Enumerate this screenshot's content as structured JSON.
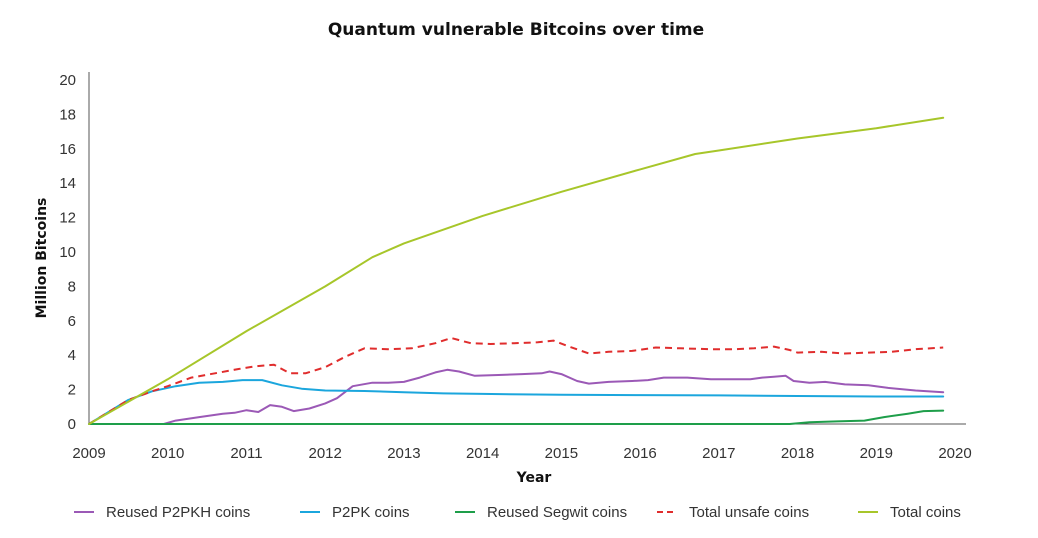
{
  "chart_data": {
    "type": "line",
    "title": "Quantum vulnerable Bitcoins over time",
    "xlabel": "Year",
    "ylabel": "Million Bitcoins",
    "xlim": [
      2009,
      2020
    ],
    "ylim": [
      0,
      20
    ],
    "x_ticks": [
      "2009",
      "2010",
      "2011",
      "2012",
      "2013",
      "2014",
      "2015",
      "2016",
      "2017",
      "2018",
      "2019",
      "2020"
    ],
    "y_ticks": [
      "0",
      "2",
      "4",
      "6",
      "8",
      "10",
      "12",
      "14",
      "16",
      "18",
      "20"
    ],
    "grid": false,
    "legend_position": "bottom",
    "series": [
      {
        "name": "Reused P2PKH coins",
        "color": "#9b59b6",
        "dash": "solid",
        "points": [
          [
            2009,
            0
          ],
          [
            2009.95,
            0
          ],
          [
            2010.1,
            0.2
          ],
          [
            2010.4,
            0.4
          ],
          [
            2010.7,
            0.6
          ],
          [
            2010.85,
            0.65
          ],
          [
            2011.0,
            0.8
          ],
          [
            2011.15,
            0.7
          ],
          [
            2011.3,
            1.1
          ],
          [
            2011.45,
            1.0
          ],
          [
            2011.6,
            0.75
          ],
          [
            2011.8,
            0.9
          ],
          [
            2012.0,
            1.2
          ],
          [
            2012.15,
            1.5
          ],
          [
            2012.35,
            2.2
          ],
          [
            2012.6,
            2.4
          ],
          [
            2012.8,
            2.4
          ],
          [
            2013.0,
            2.45
          ],
          [
            2013.2,
            2.7
          ],
          [
            2013.4,
            3.0
          ],
          [
            2013.55,
            3.15
          ],
          [
            2013.7,
            3.05
          ],
          [
            2013.9,
            2.8
          ],
          [
            2014.2,
            2.85
          ],
          [
            2014.5,
            2.9
          ],
          [
            2014.75,
            2.95
          ],
          [
            2014.85,
            3.05
          ],
          [
            2015.0,
            2.9
          ],
          [
            2015.2,
            2.5
          ],
          [
            2015.35,
            2.35
          ],
          [
            2015.6,
            2.45
          ],
          [
            2015.9,
            2.5
          ],
          [
            2016.1,
            2.55
          ],
          [
            2016.3,
            2.7
          ],
          [
            2016.6,
            2.7
          ],
          [
            2016.9,
            2.6
          ],
          [
            2017.2,
            2.6
          ],
          [
            2017.4,
            2.6
          ],
          [
            2017.55,
            2.7
          ],
          [
            2017.7,
            2.75
          ],
          [
            2017.85,
            2.8
          ],
          [
            2017.95,
            2.5
          ],
          [
            2018.15,
            2.4
          ],
          [
            2018.35,
            2.45
          ],
          [
            2018.6,
            2.3
          ],
          [
            2018.9,
            2.25
          ],
          [
            2019.15,
            2.1
          ],
          [
            2019.5,
            1.95
          ],
          [
            2019.85,
            1.85
          ]
        ]
      },
      {
        "name": "P2PK coins",
        "color": "#1ba6dd",
        "dash": "solid",
        "points": [
          [
            2009,
            0
          ],
          [
            2009.5,
            1.4
          ],
          [
            2009.8,
            1.9
          ],
          [
            2010.1,
            2.2
          ],
          [
            2010.4,
            2.4
          ],
          [
            2010.7,
            2.45
          ],
          [
            2010.95,
            2.55
          ],
          [
            2011.2,
            2.55
          ],
          [
            2011.45,
            2.25
          ],
          [
            2011.7,
            2.05
          ],
          [
            2012.0,
            1.95
          ],
          [
            2012.5,
            1.92
          ],
          [
            2013.0,
            1.85
          ],
          [
            2013.5,
            1.78
          ],
          [
            2014.0,
            1.75
          ],
          [
            2014.5,
            1.72
          ],
          [
            2015.0,
            1.7
          ],
          [
            2016.0,
            1.68
          ],
          [
            2017.0,
            1.66
          ],
          [
            2018.0,
            1.63
          ],
          [
            2019.0,
            1.6
          ],
          [
            2019.85,
            1.6
          ]
        ]
      },
      {
        "name": "Reused Segwit coins",
        "color": "#1e9e4a",
        "dash": "solid",
        "points": [
          [
            2009,
            0
          ],
          [
            2017.9,
            0
          ],
          [
            2018.15,
            0.1
          ],
          [
            2018.5,
            0.15
          ],
          [
            2018.85,
            0.2
          ],
          [
            2019.1,
            0.4
          ],
          [
            2019.4,
            0.6
          ],
          [
            2019.6,
            0.75
          ],
          [
            2019.85,
            0.78
          ]
        ]
      },
      {
        "name": "Total unsafe coins",
        "color": "#e02d2d",
        "dash": "dashed",
        "points": [
          [
            2009,
            0
          ],
          [
            2009.5,
            1.4
          ],
          [
            2009.8,
            1.9
          ],
          [
            2010.0,
            2.2
          ],
          [
            2010.3,
            2.7
          ],
          [
            2010.6,
            2.95
          ],
          [
            2010.9,
            3.2
          ],
          [
            2011.1,
            3.35
          ],
          [
            2011.35,
            3.45
          ],
          [
            2011.55,
            2.95
          ],
          [
            2011.75,
            2.95
          ],
          [
            2012.0,
            3.3
          ],
          [
            2012.25,
            3.9
          ],
          [
            2012.5,
            4.4
          ],
          [
            2012.8,
            4.35
          ],
          [
            2013.1,
            4.4
          ],
          [
            2013.4,
            4.7
          ],
          [
            2013.6,
            5.0
          ],
          [
            2013.85,
            4.7
          ],
          [
            2014.1,
            4.65
          ],
          [
            2014.4,
            4.7
          ],
          [
            2014.7,
            4.75
          ],
          [
            2014.9,
            4.85
          ],
          [
            2015.1,
            4.5
          ],
          [
            2015.35,
            4.1
          ],
          [
            2015.6,
            4.2
          ],
          [
            2015.9,
            4.25
          ],
          [
            2016.2,
            4.45
          ],
          [
            2016.5,
            4.4
          ],
          [
            2016.9,
            4.35
          ],
          [
            2017.2,
            4.35
          ],
          [
            2017.45,
            4.4
          ],
          [
            2017.7,
            4.5
          ],
          [
            2017.9,
            4.3
          ],
          [
            2018.0,
            4.15
          ],
          [
            2018.3,
            4.2
          ],
          [
            2018.6,
            4.1
          ],
          [
            2018.9,
            4.15
          ],
          [
            2019.2,
            4.2
          ],
          [
            2019.5,
            4.35
          ],
          [
            2019.85,
            4.45
          ]
        ]
      },
      {
        "name": "Total coins",
        "color": "#a7c62a",
        "dash": "solid",
        "points": [
          [
            2009,
            0
          ],
          [
            2010,
            2.6
          ],
          [
            2011,
            5.4
          ],
          [
            2012,
            8.0
          ],
          [
            2012.6,
            9.7
          ],
          [
            2012.85,
            10.2
          ],
          [
            2013.0,
            10.5
          ],
          [
            2014.0,
            12.1
          ],
          [
            2015.0,
            13.5
          ],
          [
            2016.0,
            14.8
          ],
          [
            2016.7,
            15.7
          ],
          [
            2017.0,
            15.9
          ],
          [
            2018.0,
            16.6
          ],
          [
            2019.0,
            17.2
          ],
          [
            2019.85,
            17.8
          ]
        ]
      }
    ]
  }
}
